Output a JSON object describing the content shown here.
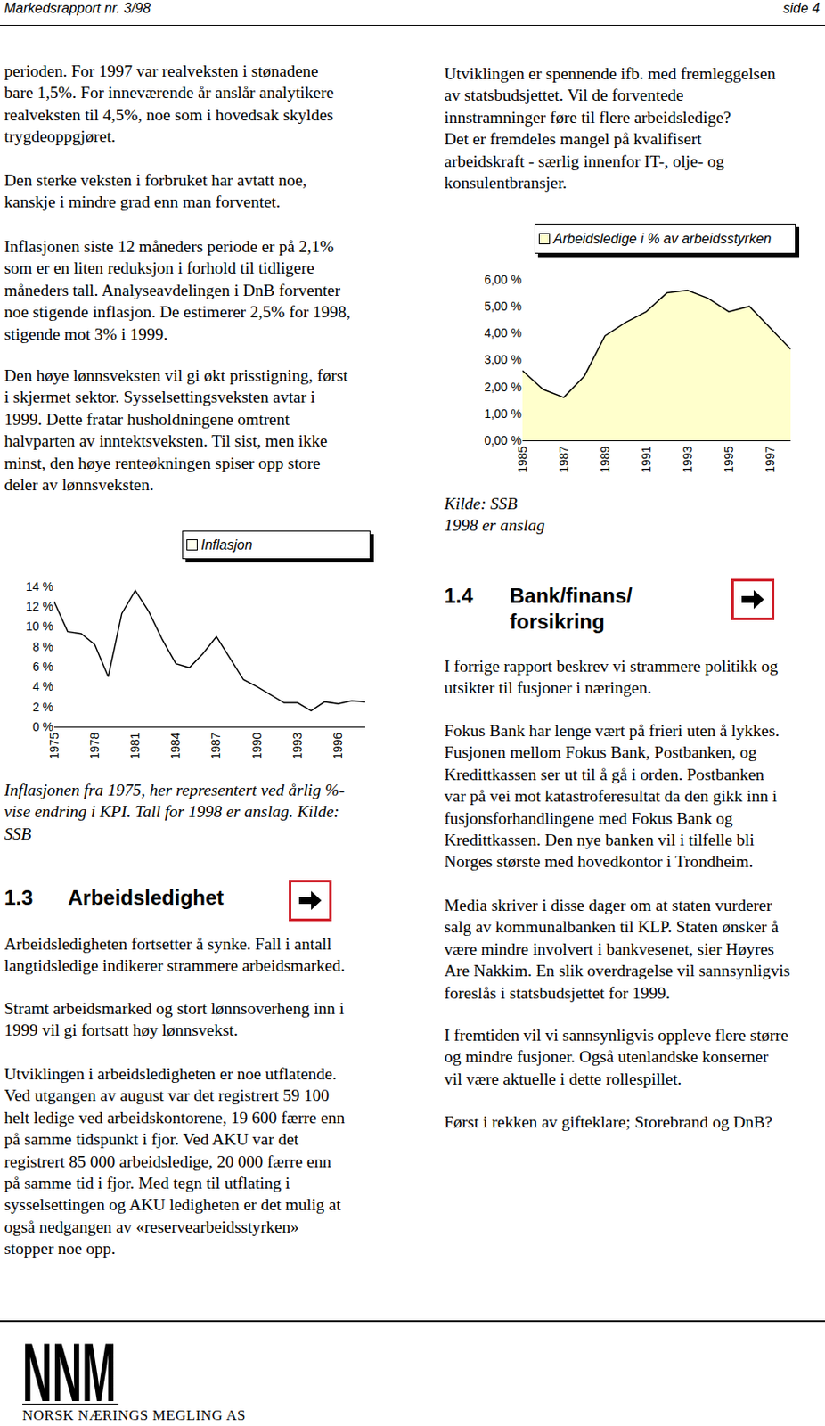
{
  "header": {
    "left": "Markedsrapport nr. 3/98",
    "right": "side 4"
  },
  "left_column": {
    "paragraphs": [
      [
        "perioden. For 1997 var realveksten i stønadene",
        "bare 1,5%. For inneværende år anslår analytikere",
        "realveksten til 4,5%, noe som i hovedsak skyldes",
        "trygdeoppgjøret."
      ],
      [
        "Den sterke veksten i forbruket har avtatt noe,",
        "kanskje i mindre grad enn man forventet."
      ],
      [
        "Inflasjonen siste 12 måneders periode er på 2,1%",
        "som er en liten reduksjon i forhold til tidligere",
        "måneders tall. Analyseavdelingen i DnB forventer",
        "noe stigende inflasjon. De estimerer 2,5% for 1998,",
        "stigende mot 3% i 1999."
      ],
      [
        "Den høye lønnsveksten vil gi økt prisstigning, først",
        "i skjermet sektor. Sysselsettingsveksten avtar i",
        "1999. Dette fratar husholdningene omtrent",
        "halvparten av inntektsveksten. Til sist, men ikke",
        "minst, den høye renteøkningen spiser opp store",
        "deler av lønnsveksten."
      ]
    ],
    "chart_caption": [
      "Inflasjonen fra 1975, her representert ved årlig %-",
      "vise endring i KPI. Tall for 1998 er anslag. Kilde:",
      "SSB"
    ],
    "section": {
      "number": "1.3",
      "title": [
        "Arbeidsledighet"
      ],
      "paragraphs": [
        [
          "Arbeidsledigheten fortsetter å synke. Fall i antall",
          "langtidsledige indikerer strammere arbeidsmarked."
        ],
        [
          "Stramt arbeidsmarked og stort lønnsoverheng inn i",
          "1999 vil gi fortsatt høy lønnsvekst."
        ],
        [
          "Utviklingen i arbeidsledigheten er noe utflatende.",
          "Ved utgangen av august var det registrert 59 100",
          "helt ledige ved arbeidskontorene, 19 600 færre enn",
          "på samme tidspunkt i fjor. Ved AKU var det",
          "registrert 85 000 arbeidsledige, 20 000 færre enn",
          "på samme tid i fjor. Med tegn til utflating i",
          "sysselsettingen og AKU ledigheten er det mulig at",
          "også nedgangen av «reservearbeidsstyrken»",
          "stopper noe opp."
        ]
      ]
    }
  },
  "right_column": {
    "paragraphs": [
      [
        "Utviklingen er spennende ifb. med fremleggelsen",
        "av statsbudsjettet. Vil de forventede",
        "innstramninger føre til flere arbeidsledige?",
        "Det er fremdeles mangel på kvalifisert",
        "arbeidskraft - særlig innenfor IT-, olje- og",
        "konsulentbransjer."
      ]
    ],
    "chart_caption": [
      "Kilde: SSB",
      "1998 er anslag"
    ],
    "section": {
      "number": "1.4",
      "title": [
        "Bank/finans/",
        "forsikring"
      ],
      "paragraphs": [
        [
          "I forrige rapport beskrev vi strammere politikk og",
          "utsikter til fusjoner i næringen."
        ],
        [
          "Fokus Bank har lenge vært på frieri uten å lykkes.",
          "Fusjonen mellom Fokus Bank, Postbanken, og",
          "Kredittkassen ser ut til å gå i orden. Postbanken",
          "var på vei mot katastroferesultat da den gikk inn i",
          "fusjonsforhandlingene med Fokus Bank og",
          "Kredittkassen.  Den nye banken vil i tilfelle bli",
          "Norges største med hovedkontor i Trondheim."
        ],
        [
          "Media skriver i disse dager om at staten vurderer",
          "salg av kommunalbanken til KLP. Staten ønsker å",
          "være mindre involvert i bankvesenet, sier Høyres",
          "Are Nakkim. En slik overdragelse vil sannsynligvis",
          "foreslås i statsbudsjettet for 1999."
        ],
        [
          "I fremtiden vil vi sannsynligvis oppleve flere større",
          "og mindre fusjoner. Også utenlandske konserner",
          "vil være aktuelle i dette rollespillet."
        ],
        [
          "Først i rekken av gifteklare; Storebrand og DnB?"
        ]
      ]
    }
  },
  "chart_data": [
    {
      "type": "line",
      "x": [
        1975,
        1976,
        1977,
        1978,
        1979,
        1980,
        1981,
        1982,
        1983,
        1984,
        1985,
        1986,
        1987,
        1988,
        1989,
        1990,
        1991,
        1992,
        1993,
        1994,
        1995,
        1996,
        1997,
        1998
      ],
      "series": [
        {
          "name": "Inflasjon",
          "color": "#000000",
          "values": [
            12.5,
            9.5,
            9.3,
            8.2,
            5.0,
            11.3,
            13.6,
            11.5,
            8.7,
            6.3,
            5.9,
            7.3,
            9.0,
            6.8,
            4.7,
            4.0,
            3.2,
            2.4,
            2.4,
            1.6,
            2.5,
            2.3,
            2.6,
            2.5
          ]
        }
      ],
      "xlim": [
        1975,
        1998
      ],
      "xticks": [
        1975,
        1978,
        1981,
        1984,
        1987,
        1990,
        1993,
        1996
      ],
      "ylim": [
        0,
        14
      ],
      "yticks": [
        {
          "value": 0,
          "label": "0 %"
        },
        {
          "value": 2,
          "label": "2 %"
        },
        {
          "value": 4,
          "label": "4 %"
        },
        {
          "value": 6,
          "label": "6 %"
        },
        {
          "value": 8,
          "label": "8 %"
        },
        {
          "value": 10,
          "label": "10 %"
        },
        {
          "value": 12,
          "label": "12 %"
        },
        {
          "value": 14,
          "label": "14 %"
        }
      ],
      "grid": false,
      "legend": "top-right"
    },
    {
      "type": "area",
      "x": [
        1985,
        1986,
        1987,
        1988,
        1989,
        1990,
        1991,
        1992,
        1993,
        1994,
        1995,
        1996,
        1997,
        1998
      ],
      "series": [
        {
          "name": "Arbeidsledige i % av arbeidsstyrken",
          "color": "#ffffcc",
          "values": [
            2.6,
            1.9,
            1.6,
            2.4,
            3.9,
            4.4,
            4.8,
            5.5,
            5.6,
            5.3,
            4.8,
            5.0,
            4.2,
            3.4
          ]
        }
      ],
      "xlim": [
        1985,
        1998
      ],
      "xticks": [
        1985,
        1987,
        1989,
        1991,
        1993,
        1995,
        1997
      ],
      "ylim": [
        0,
        6
      ],
      "yticks": [
        {
          "value": 0,
          "label": "0,00 %"
        },
        {
          "value": 1,
          "label": "1,00 %"
        },
        {
          "value": 2,
          "label": "2,00 %"
        },
        {
          "value": 3,
          "label": "3,00 %"
        },
        {
          "value": 4,
          "label": "4,00 %"
        },
        {
          "value": 5,
          "label": "5,00 %"
        },
        {
          "value": 6,
          "label": "6,00 %"
        }
      ],
      "grid": false,
      "legend": "top-right"
    }
  ],
  "footer": {
    "logo": "NNM",
    "company": "NORSK NÆRINGS MEGLING AS"
  }
}
